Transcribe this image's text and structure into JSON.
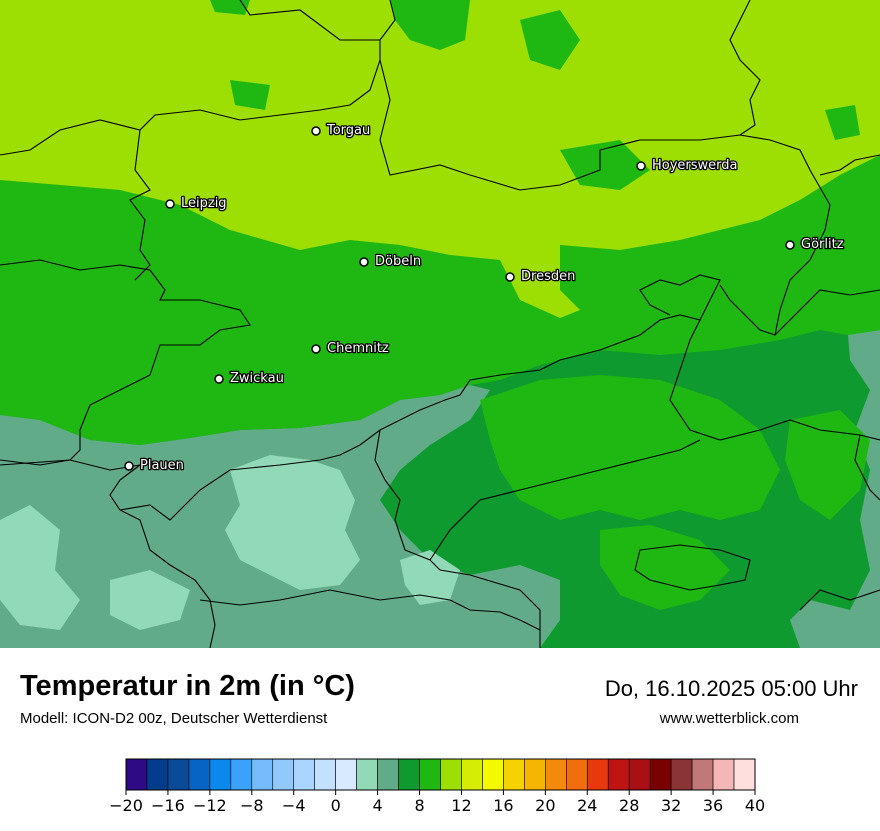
{
  "map": {
    "cities": [
      {
        "name": "Torgau"
      },
      {
        "name": "Hoyerswerda"
      },
      {
        "name": "Leipzig"
      },
      {
        "name": "Görlitz"
      },
      {
        "name": "Döbeln"
      },
      {
        "name": "Dresden"
      },
      {
        "name": "Chemnitz"
      },
      {
        "name": "Zwickau"
      },
      {
        "name": "Plauen"
      }
    ]
  },
  "header": {
    "title": "Temperatur in 2m (in °C)",
    "model": "Modell: ICON-D2 00z, Deutscher Wetterdienst",
    "datetime": "Do, 16.10.2025 05:00 Uhr",
    "website": "www.wetterblick.com"
  },
  "legend": {
    "min": -20,
    "max": 40,
    "step": 2,
    "colors": [
      "#2e0a85",
      "#023c8a",
      "#0a4a96",
      "#0763c4",
      "#0a88ec",
      "#3aa2f8",
      "#74bcfc",
      "#92c9fd",
      "#a9d5fe",
      "#c4e0ff",
      "#d8eaff",
      "#91d9b7",
      "#62ab89",
      "#0f9a2f",
      "#1fb812",
      "#9edf03",
      "#d4ed02",
      "#f4f800",
      "#f4d300",
      "#f6b500",
      "#f48a0c",
      "#f06e0e",
      "#e8380d",
      "#c01414",
      "#a81016",
      "#7a0000",
      "#8b3436",
      "#c07878",
      "#f4b6b6",
      "#ffdede"
    ],
    "tick_values": [
      -20,
      -16,
      -12,
      -8,
      -4,
      0,
      4,
      8,
      12,
      16,
      20,
      24,
      28,
      32,
      36,
      40
    ],
    "tick_labels": [
      "−20",
      "−16",
      "−12",
      "−8",
      "−4",
      "0",
      "4",
      "8",
      "12",
      "16",
      "20",
      "24",
      "28",
      "32",
      "36",
      "40"
    ]
  },
  "colors": {
    "temp_8_10": "#1fb812",
    "temp_10_12": "#9edf03",
    "temp_6_8": "#0f9a2f",
    "temp_4_6": "#62ab89",
    "temp_2_4": "#91d9b7"
  }
}
